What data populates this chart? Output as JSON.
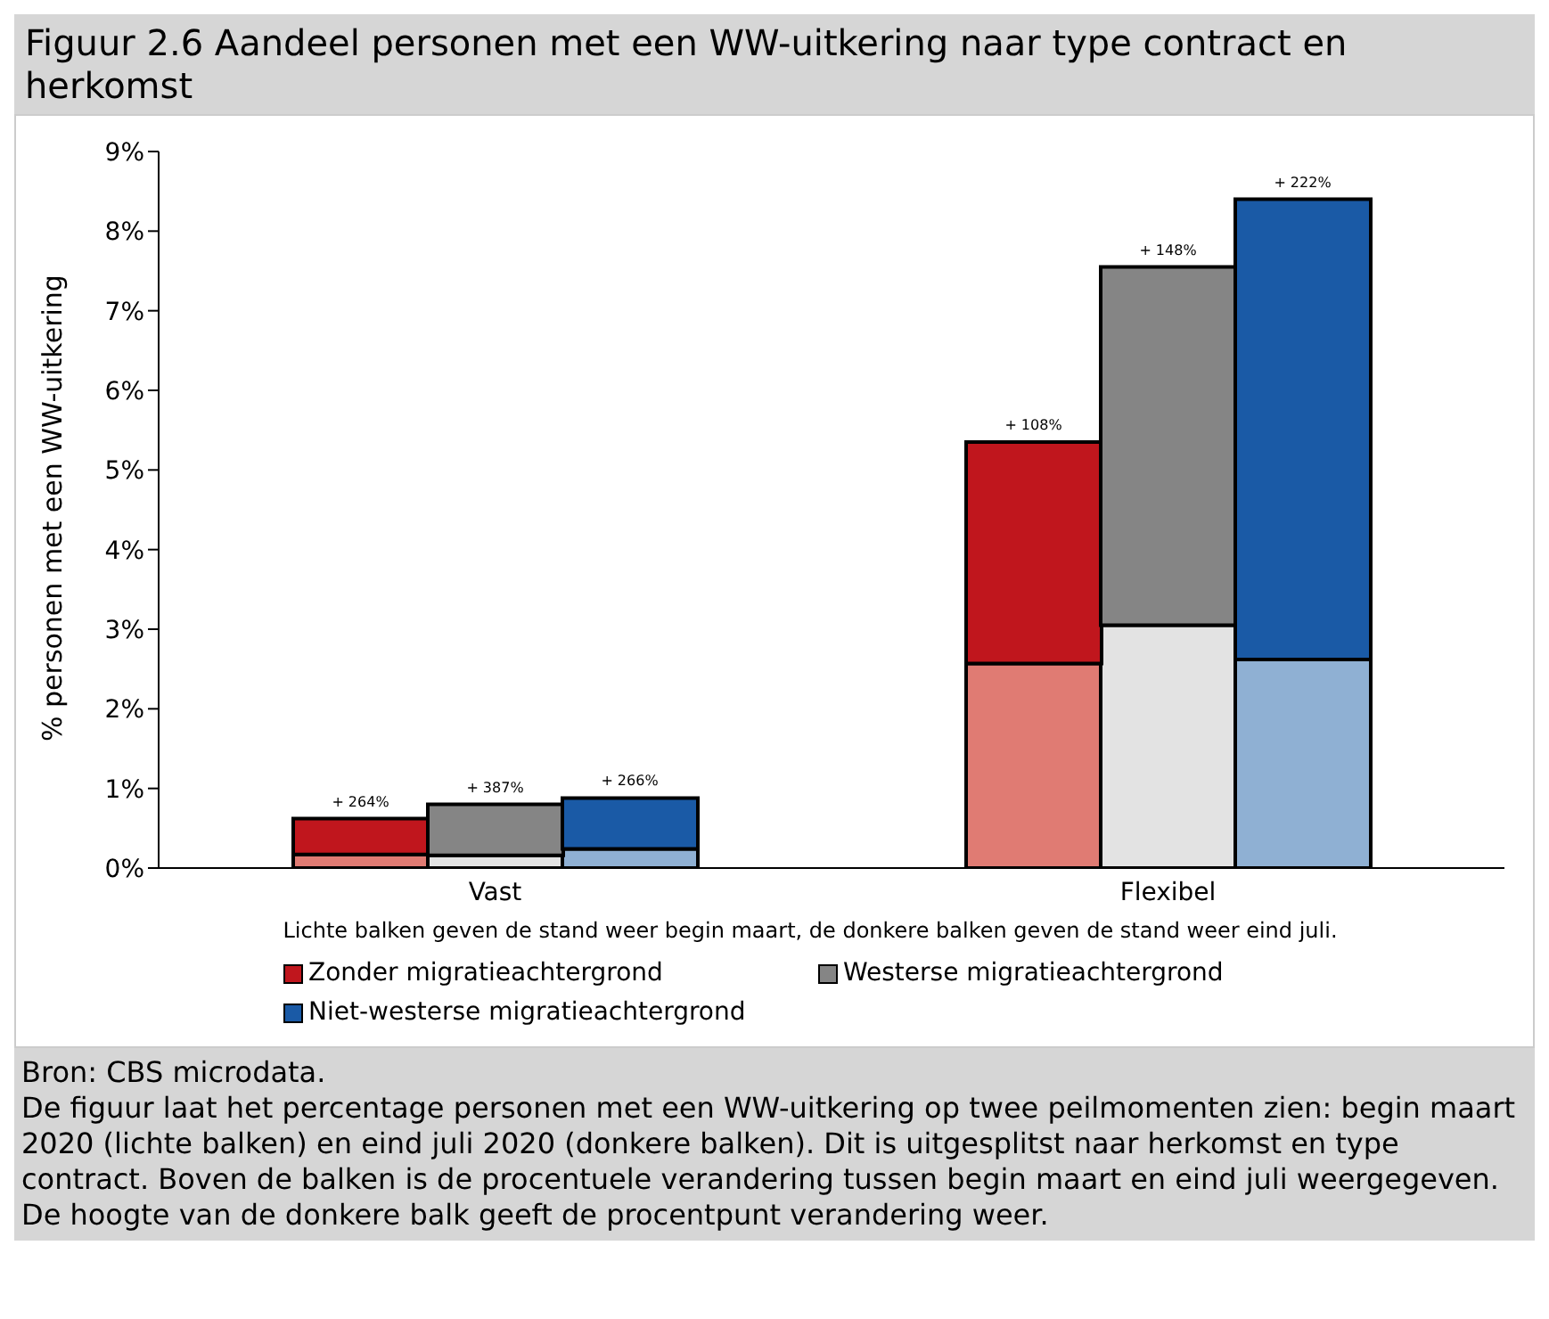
{
  "chart_data": {
    "type": "bar",
    "title": "Figuur 2.6   Aandeel personen met een WW-uitkering naar type contract en herkomst",
    "ylabel": "% personen met een WW-uitkering",
    "categories": [
      null,
      null,
      "Vast",
      null,
      null,
      null,
      null,
      "Flexibel",
      null,
      null
    ],
    "stacked": true,
    "ylim": [
      0,
      9
    ],
    "yticks": [
      {
        "value": 0,
        "label": "0%"
      },
      {
        "value": 1,
        "label": "1%"
      },
      {
        "value": 2,
        "label": "2%"
      },
      {
        "value": 3,
        "label": "3%"
      },
      {
        "value": 4,
        "label": "4%"
      },
      {
        "value": 5,
        "label": "5%"
      },
      {
        "value": 6,
        "label": "6%"
      },
      {
        "value": 7,
        "label": "7%"
      },
      {
        "value": 8,
        "label": "8%"
      },
      {
        "value": 9,
        "label": "9%"
      }
    ],
    "legend": "bottom",
    "series": [
      {
        "color": "#e07b73",
        "values": [
          null,
          0.17,
          null,
          null,
          null,
          null,
          2.57,
          null,
          null,
          null
        ]
      },
      {
        "color": "#e3e3e3",
        "values": [
          null,
          null,
          0.16,
          null,
          null,
          null,
          null,
          3.05,
          null,
          null
        ]
      },
      {
        "color": "#8fb0d3",
        "values": [
          null,
          null,
          null,
          0.24,
          null,
          null,
          null,
          null,
          2.62,
          null
        ]
      },
      {
        "name": "Zonder migratieachtergrond",
        "color": "#c0161d",
        "values": [
          null,
          0.45,
          null,
          null,
          null,
          null,
          2.78,
          null,
          null,
          null
        ]
      },
      {
        "name": "Westerse migratieachtergrond",
        "color": "#858585",
        "values": [
          null,
          null,
          0.64,
          null,
          null,
          null,
          null,
          4.5,
          null,
          null
        ]
      },
      {
        "name": "Niet-westerse migratieachtergrond",
        "color": "#1a5aa6",
        "values": [
          null,
          null,
          null,
          0.64,
          null,
          null,
          null,
          null,
          5.78,
          null
        ]
      }
    ],
    "annotations": [
      {
        "text": "+ 264%",
        "y": 0.62
      },
      {
        "text": "+ 387%",
        "y": 0.8
      },
      {
        "text": "+ 266%",
        "y": 0.88
      },
      {
        "text": "+ 108%",
        "y": 5.35
      },
      {
        "text": "+ 148%",
        "y": 7.55
      },
      {
        "text": "+ 222%",
        "y": 8.4
      },
      "Lichte balken geven de stand weer begin maart, de donkere balken geven de stand weer eind juli.",
      "Bron: CBS microdata.",
      "De figuur laat het percentage personen met een WW-uitkering op twee peilmomenten zien: begin maart 2020 (lichte balken) en eind juli 2020 (donkere balken). Dit is uitgesplitst naar herkomst en type contract. Boven de balken is de procentuele verandering tussen begin maart en eind juli weergegeven. De hoogte van de donkere balk geeft de procentpunt verandering weer."
    ]
  }
}
